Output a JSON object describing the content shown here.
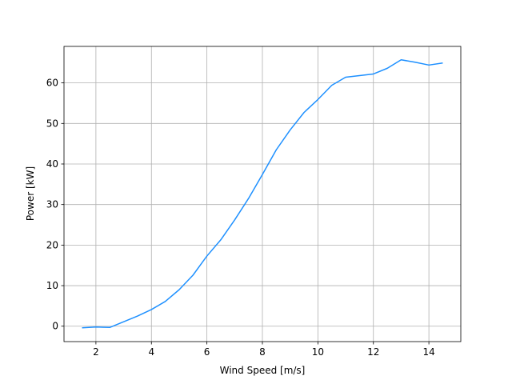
{
  "chart_data": {
    "type": "line",
    "x_label": "Wind Speed [m/s]",
    "y_label": "Power [kW]",
    "x": [
      1.5,
      2.0,
      2.5,
      3.0,
      3.5,
      4.0,
      4.5,
      5.0,
      5.5,
      6.0,
      6.5,
      7.0,
      7.5,
      8.0,
      8.5,
      9.0,
      9.5,
      10.0,
      10.5,
      11.0,
      11.5,
      12.0,
      12.5,
      13.0,
      13.5,
      14.0,
      14.5
    ],
    "series": [
      {
        "name": "Power",
        "color": "#1e90ff",
        "values": [
          -0.4,
          -0.2,
          -0.3,
          1.1,
          2.5,
          4.1,
          6.1,
          9.0,
          12.6,
          17.3,
          21.3,
          26.2,
          31.5,
          37.4,
          43.5,
          48.4,
          52.7,
          55.9,
          59.4,
          61.4,
          61.8,
          62.2,
          63.6,
          65.7,
          65.1,
          64.4,
          64.9
        ]
      }
    ],
    "xlim": [
      0.85,
      15.15
    ],
    "ylim": [
      -3.8,
      69.0
    ],
    "xticks": [
      2,
      4,
      6,
      8,
      10,
      12,
      14
    ],
    "yticks": [
      0,
      10,
      20,
      30,
      40,
      50,
      60
    ],
    "grid": true,
    "legend": false
  }
}
